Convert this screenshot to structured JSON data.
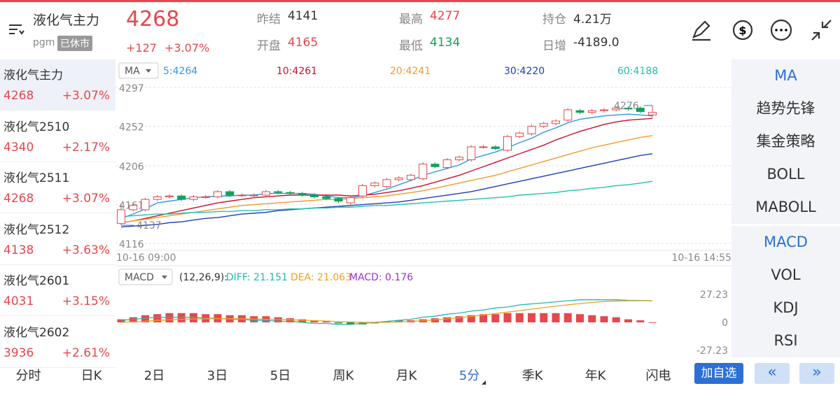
{
  "header": {
    "name": "液化气主力",
    "exchange": "pgm",
    "status": "已休市",
    "price": "4268",
    "change": "+127",
    "change_pct": "+3.07%",
    "stats": [
      {
        "label": "昨结",
        "value": "4141"
      },
      {
        "label": "开盘",
        "value": "4165"
      },
      {
        "label": "最高",
        "value": "4277"
      },
      {
        "label": "最低",
        "value": "4134"
      },
      {
        "label": "持仓",
        "value": "4.21万"
      },
      {
        "label": "日增",
        "value": "-4189.0"
      }
    ]
  },
  "watchlist": [
    {
      "name": "液化气主力",
      "price": "4268",
      "change": "+3.07%"
    },
    {
      "name": "液化气2510",
      "price": "4340",
      "change": "+2.17%"
    },
    {
      "name": "液化气2511",
      "price": "4268",
      "change": "+3.07%"
    },
    {
      "name": "液化气2512",
      "price": "4138",
      "change": "+3.63%"
    },
    {
      "name": "液化气2601",
      "price": "4031",
      "change": "+3.15%"
    },
    {
      "name": "液化气2602",
      "price": "3936",
      "change": "+2.61%"
    }
  ],
  "chart": {
    "type": "candlestick",
    "indicator": "MA",
    "ylim": [
      4116,
      4297
    ],
    "yticks": [
      4297,
      4252,
      4206,
      4161,
      4116
    ],
    "x_start": "10-16 09:00",
    "x_end": "10-16 14:55",
    "high_label": "4276",
    "low_label": "4137",
    "open": [
      4139,
      4155,
      4155,
      4167,
      4170,
      4171,
      4167,
      4170,
      4170,
      4176,
      4172,
      4172,
      4172,
      4176,
      4175,
      4174,
      4172,
      4170,
      4168,
      4163,
      4171,
      4183,
      4182,
      4190,
      4190,
      4191,
      4208,
      4204,
      4213,
      4213,
      4228,
      4228,
      4224,
      4240,
      4243,
      4252,
      4255,
      4259,
      4270,
      4268,
      4270,
      4271,
      4273,
      4273,
      4265
    ],
    "close": [
      4155,
      4160,
      4167,
      4170,
      4171,
      4167,
      4170,
      4170,
      4176,
      4172,
      4172,
      4172,
      4176,
      4175,
      4174,
      4172,
      4170,
      4168,
      4165,
      4169,
      4183,
      4186,
      4190,
      4192,
      4195,
      4208,
      4205,
      4213,
      4216,
      4228,
      4228,
      4226,
      4240,
      4244,
      4252,
      4255,
      4258,
      4271,
      4268,
      4270,
      4271,
      4273,
      4272,
      4269,
      4268
    ],
    "high": [
      4161,
      4162,
      4169,
      4172,
      4173,
      4173,
      4172,
      4172,
      4178,
      4178,
      4174,
      4174,
      4178,
      4178,
      4177,
      4176,
      4174,
      4172,
      4170,
      4171,
      4185,
      4188,
      4192,
      4194,
      4197,
      4210,
      4210,
      4215,
      4218,
      4230,
      4230,
      4230,
      4242,
      4246,
      4254,
      4257,
      4260,
      4273,
      4272,
      4272,
      4273,
      4275,
      4275,
      4275,
      4276
    ],
    "low": [
      4137,
      4153,
      4153,
      4165,
      4168,
      4165,
      4165,
      4168,
      4168,
      4170,
      4170,
      4170,
      4170,
      4173,
      4172,
      4170,
      4168,
      4166,
      4163,
      4161,
      4169,
      4181,
      4180,
      4188,
      4188,
      4189,
      4203,
      4202,
      4211,
      4211,
      4226,
      4224,
      4222,
      4238,
      4241,
      4250,
      4253,
      4257,
      4266,
      4266,
      4268,
      4269,
      4270,
      4267,
      4262
    ],
    "ma": [
      {
        "name": "5:4264",
        "color": "#2d9be0",
        "values": [
          4145,
          4150,
          4156,
          4163,
          4165,
          4167,
          4169,
          4170,
          4171,
          4171,
          4172,
          4172,
          4174,
          4174,
          4174,
          4174,
          4173,
          4171,
          4169,
          4169,
          4171,
          4175,
          4179,
          4184,
          4189,
          4195,
          4199,
          4203,
          4207,
          4214,
          4218,
          4222,
          4227,
          4233,
          4238,
          4245,
          4250,
          4256,
          4260,
          4262,
          4264,
          4265,
          4266,
          4265,
          4264
        ]
      },
      {
        "name": "10:4261",
        "color": "#c8102e",
        "values": [
          4140,
          4142,
          4145,
          4148,
          4151,
          4154,
          4157,
          4160,
          4163,
          4165,
          4167,
          4169,
          4170,
          4171,
          4172,
          4172,
          4172,
          4172,
          4172,
          4171,
          4172,
          4173,
          4175,
          4177,
          4180,
          4183,
          4187,
          4191,
          4195,
          4200,
          4205,
          4210,
          4215,
          4220,
          4225,
          4230,
          4236,
          4241,
          4246,
          4250,
          4254,
          4257,
          4259,
          4260,
          4261
        ]
      },
      {
        "name": "20:4241",
        "color": "#f29a2e",
        "values": [
          4140,
          4142,
          4144,
          4146,
          4148,
          4150,
          4152,
          4154,
          4156,
          4158,
          4160,
          4161,
          4162,
          4163,
          4164,
          4165,
          4166,
          4167,
          4167,
          4168,
          4169,
          4170,
          4171,
          4173,
          4175,
          4177,
          4180,
          4183,
          4186,
          4189,
          4192,
          4195,
          4199,
          4203,
          4207,
          4211,
          4215,
          4219,
          4223,
          4227,
          4230,
          4233,
          4236,
          4239,
          4241
        ]
      },
      {
        "name": "30:4220",
        "color": "#1d3fb8",
        "values": [
          4135,
          4136,
          4137,
          4138,
          4140,
          4141,
          4143,
          4145,
          4146,
          4148,
          4150,
          4151,
          4152,
          4154,
          4155,
          4156,
          4157,
          4158,
          4159,
          4160,
          4161,
          4162,
          4163,
          4164,
          4166,
          4168,
          4170,
          4172,
          4174,
          4176,
          4179,
          4182,
          4185,
          4188,
          4191,
          4194,
          4197,
          4200,
          4203,
          4206,
          4209,
          4212,
          4215,
          4218,
          4220
        ]
      },
      {
        "name": "60:4188",
        "color": "#22c0ad",
        "values": [
          4147,
          4148,
          4149,
          4150,
          4150,
          4151,
          4152,
          4152,
          4153,
          4153,
          4154,
          4154,
          4155,
          4155,
          4156,
          4156,
          4157,
          4157,
          4158,
          4158,
          4159,
          4160,
          4160,
          4161,
          4162,
          4163,
          4164,
          4165,
          4166,
          4167,
          4168,
          4169,
          4170,
          4172,
          4173,
          4174,
          4175,
          4177,
          4178,
          4180,
          4181,
          4183,
          4184,
          4186,
          4188
        ]
      }
    ],
    "macd": {
      "indicator": "MACD",
      "params": "(12,26,9):",
      "ylim": [
        -27.23,
        27.23
      ],
      "yticks": [
        27.23,
        0,
        -27.23
      ],
      "hist": [
        3,
        5,
        7,
        8,
        9,
        9,
        9,
        8,
        8,
        7,
        7,
        6,
        6,
        5,
        4,
        3,
        2,
        1,
        -1,
        -2,
        -2,
        -1,
        1,
        2,
        2,
        3,
        4,
        5,
        6,
        7,
        8,
        8,
        9,
        9,
        9,
        9,
        9,
        9,
        8,
        7,
        6,
        5,
        3,
        2,
        0.176
      ],
      "lines": [
        {
          "name": "DIFF: 21.151",
          "color": "#22b8b0",
          "values": [
            2,
            3,
            4,
            5,
            5,
            5,
            5,
            4,
            4,
            3,
            3,
            2,
            2,
            1,
            1,
            0,
            -1,
            -1,
            -2,
            -2,
            -1,
            0,
            1,
            2,
            3,
            5,
            6,
            8,
            9,
            11,
            12,
            14,
            15,
            17,
            18,
            19,
            20,
            21,
            22,
            22,
            22,
            22,
            21.5,
            21.3,
            21.151
          ]
        },
        {
          "name": "DEA: 21.063",
          "color": "#f0a020",
          "values": [
            0,
            0.5,
            1,
            2,
            2.5,
            3,
            3.3,
            3.5,
            3.6,
            3.6,
            3.5,
            3.3,
            3,
            2.8,
            2.5,
            2.1,
            1.7,
            1.3,
            0.8,
            0.4,
            0.1,
            0,
            0.1,
            0.4,
            0.9,
            1.6,
            2.5,
            3.5,
            4.6,
            5.8,
            7.2,
            8.6,
            10,
            11.4,
            12.9,
            14.4,
            15.8,
            17.1,
            18.3,
            19.4,
            20.3,
            20.8,
            21,
            21.1,
            21.063
          ]
        }
      ],
      "hist_label": "MACD: 0.176"
    }
  },
  "side_menu": {
    "main": [
      "MA",
      "趋势先锋",
      "集金策略",
      "BOLL",
      "MABOLL"
    ],
    "sub": [
      "MACD",
      "VOL",
      "KDJ",
      "RSI"
    ]
  },
  "tabs": [
    "分时",
    "日K",
    "2日",
    "3日",
    "5日",
    "周K",
    "月K",
    "5分",
    "季K",
    "年K",
    "闪电"
  ],
  "buttons": {
    "add": "加自选",
    "prev": "«",
    "next": "»"
  }
}
